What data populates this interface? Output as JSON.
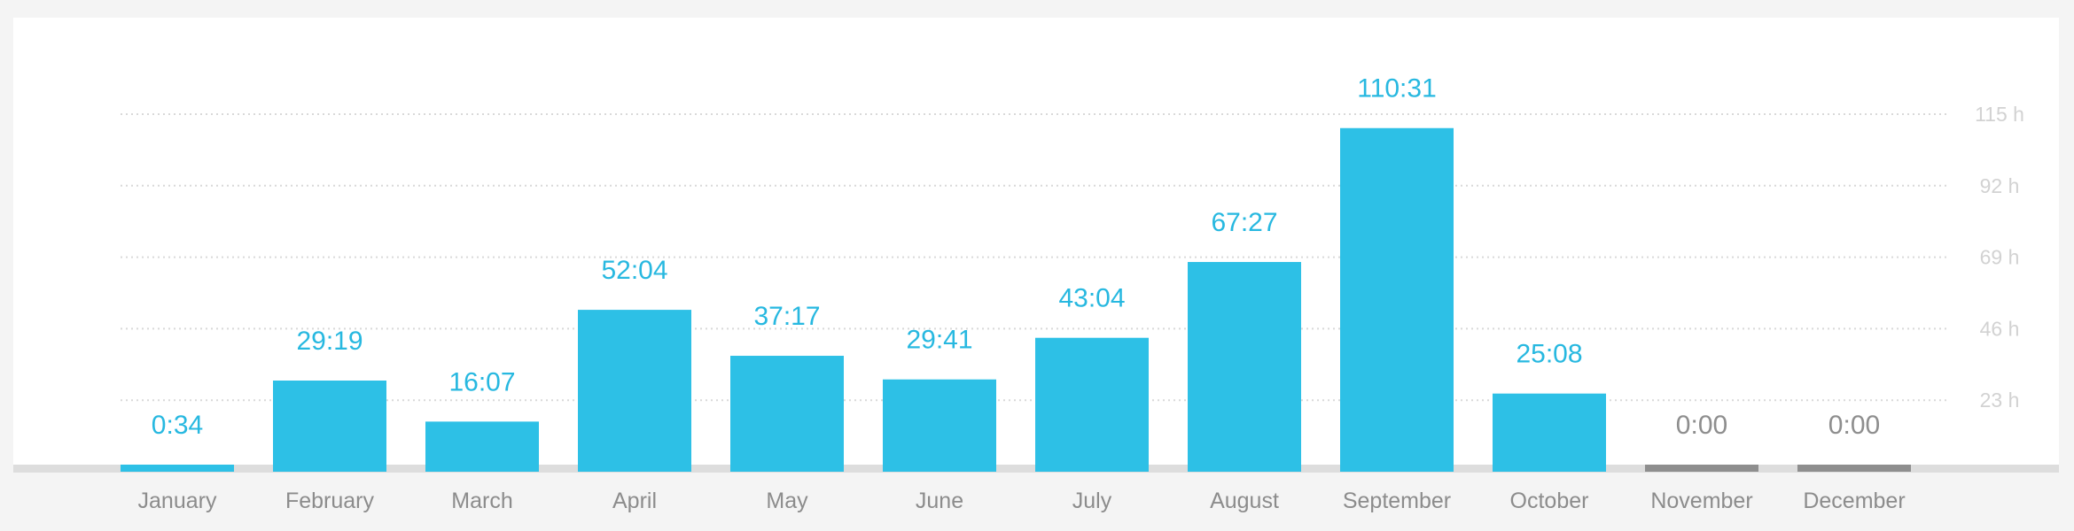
{
  "chart_data": {
    "type": "bar",
    "categories": [
      "January",
      "February",
      "March",
      "April",
      "May",
      "June",
      "July",
      "August",
      "September",
      "October",
      "November",
      "December"
    ],
    "values_label": [
      "0:34",
      "29:19",
      "16:07",
      "52:04",
      "37:17",
      "29:41",
      "43:04",
      "67:27",
      "110:31",
      "25:08",
      "0:00",
      "0:00"
    ],
    "values": [
      0.567,
      29.317,
      16.117,
      52.067,
      37.283,
      29.683,
      43.067,
      67.45,
      110.517,
      25.133,
      0,
      0
    ],
    "y_ticks": [
      23,
      46,
      69,
      92,
      115
    ],
    "y_tick_labels": [
      "23 h",
      "46 h",
      "69 h",
      "92 h",
      "115 h"
    ],
    "ylim": [
      0,
      115
    ],
    "grid": true,
    "title": "",
    "xlabel": "",
    "ylabel": ""
  },
  "colors": {
    "bar": "#2dc0e6",
    "bar_value": "#27b8e0",
    "empty_bar": "#8e8e8e",
    "empty_value": "#8e8e8e",
    "baseline": "#dddddd"
  }
}
